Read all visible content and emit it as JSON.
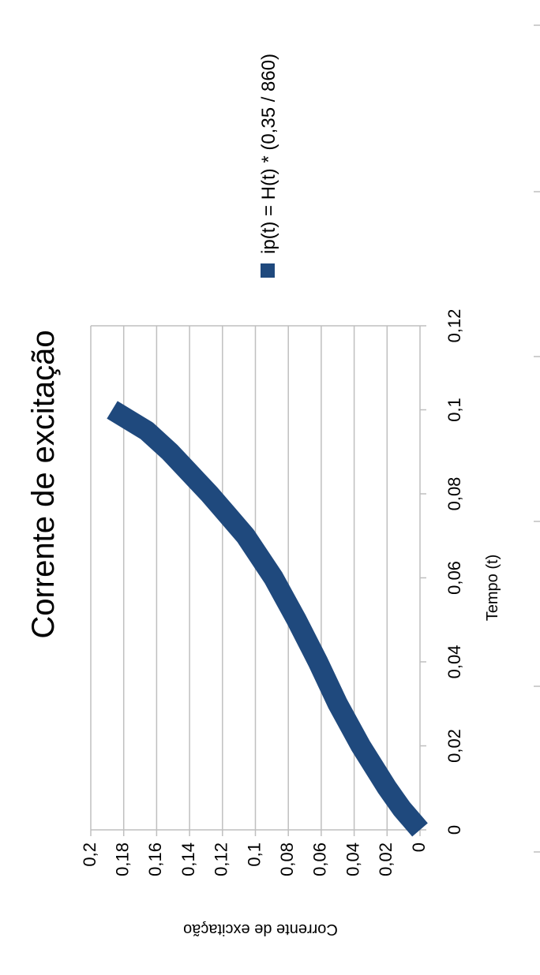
{
  "chart_data": {
    "type": "line",
    "title": "Corrente de excitação",
    "xlabel": "Tempo (t)",
    "ylabel": "Corrente de excitação",
    "xlim": [
      0,
      0.12
    ],
    "ylim": [
      0,
      0.2
    ],
    "x_ticks": [
      "0",
      "0,02",
      "0,04",
      "0,06",
      "0,08",
      "0,1",
      "0,12"
    ],
    "y_ticks": [
      "0",
      "0,02",
      "0,04",
      "0,06",
      "0,08",
      "0,1",
      "0,12",
      "0,14",
      "0,16",
      "0,18",
      "0,2"
    ],
    "grid": true,
    "legend_position": "top",
    "series": [
      {
        "name": "ip(t) = H(t) * (0,35 / 860)",
        "color": "#1f497d",
        "x": [
          0,
          0.005,
          0.01,
          0.02,
          0.03,
          0.04,
          0.05,
          0.06,
          0.07,
          0.075,
          0.08,
          0.09,
          0.095,
          0.1
        ],
        "y": [
          0,
          0.011,
          0.02,
          0.036,
          0.05,
          0.062,
          0.075,
          0.089,
          0.106,
          0.117,
          0.128,
          0.152,
          0.166,
          0.187
        ]
      }
    ]
  },
  "side_marks": [
    0,
    1,
    2,
    3,
    4,
    5
  ]
}
